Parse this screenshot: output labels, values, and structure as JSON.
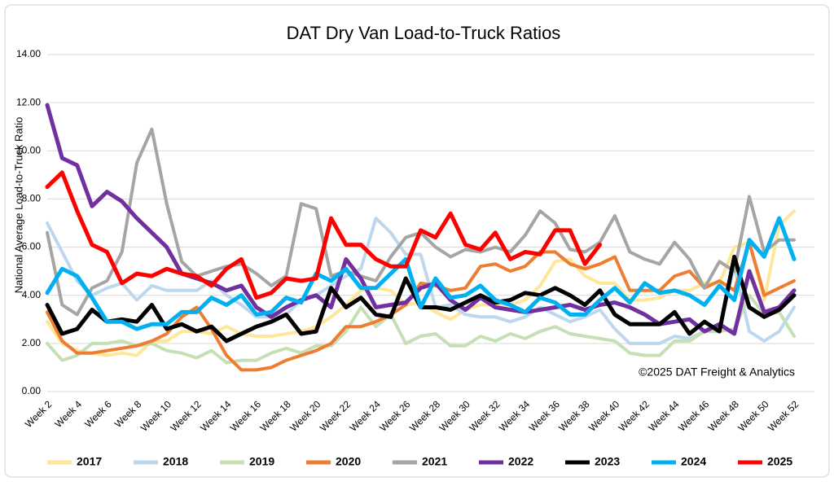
{
  "chart_data": {
    "type": "line",
    "title": "DAT Dry Van Load-to-Truck Ratios",
    "y_label": "National Average Load-to-Truck Ratio",
    "annotation": "©2025 DAT Freight & Analytics",
    "grid": true,
    "legend": "bottom",
    "ylim": [
      0,
      14
    ],
    "yticks": [
      {
        "value": 0,
        "label": "0.00"
      },
      {
        "value": 2,
        "label": "2.00"
      },
      {
        "value": 4,
        "label": "4.00"
      },
      {
        "value": 6,
        "label": "6.00"
      },
      {
        "value": 8,
        "label": "8.00"
      },
      {
        "value": 10,
        "label": "10.00"
      },
      {
        "value": 12,
        "label": "12.00"
      },
      {
        "value": 14,
        "label": "14.00"
      }
    ],
    "categories": [
      "Week 2",
      null,
      "Week 4",
      null,
      "Week 6",
      null,
      "Week 8",
      null,
      "Week 10",
      null,
      "Week 12",
      null,
      "Week 14",
      null,
      "Week 16",
      null,
      "Week 18",
      null,
      "Week 20",
      null,
      "Week 22",
      null,
      "Week 24",
      null,
      "Week 26",
      null,
      "Week 28",
      null,
      "Week 30",
      null,
      "Week 32",
      null,
      "Week 34",
      null,
      "Week 36",
      null,
      "Week 38",
      null,
      "Week 40",
      null,
      "Week 42",
      null,
      "Week 44",
      null,
      "Week 46",
      null,
      "Week 48",
      null,
      "Week 50",
      null,
      "Week 52"
    ],
    "series": [
      {
        "name": "2017",
        "color": "#ffe699",
        "values": [
          2.9,
          2.0,
          1.7,
          1.6,
          1.5,
          1.6,
          1.5,
          2.1,
          2.1,
          2.5,
          2.5,
          2.4,
          2.7,
          2.4,
          2.3,
          2.3,
          2.4,
          2.5,
          2.7,
          3.1,
          3.6,
          4.2,
          4.3,
          4.2,
          3.6,
          3.7,
          3.3,
          3.0,
          3.4,
          3.6,
          3.6,
          3.6,
          3.8,
          4.4,
          5.4,
          5.5,
          4.8,
          4.5,
          4.5,
          3.8,
          3.8,
          3.9,
          4.2,
          4.2,
          4.5,
          4.5,
          6.0,
          6.2,
          3.8,
          6.9,
          7.5
        ]
      },
      {
        "name": "2018",
        "color": "#bdd7ee",
        "values": [
          7.0,
          5.8,
          4.6,
          4.0,
          4.3,
          4.5,
          3.8,
          4.4,
          4.2,
          4.2,
          4.2,
          4.6,
          4.0,
          3.6,
          3.1,
          3.1,
          3.2,
          3.8,
          4.0,
          4.4,
          4.8,
          5.1,
          7.2,
          6.6,
          5.7,
          5.7,
          3.5,
          3.6,
          3.2,
          3.1,
          3.1,
          2.9,
          3.1,
          3.5,
          3.2,
          2.9,
          3.1,
          3.4,
          2.6,
          2.0,
          2.0,
          2.0,
          2.3,
          2.2,
          2.5,
          2.6,
          5.2,
          2.5,
          2.1,
          2.5,
          3.5
        ]
      },
      {
        "name": "2019",
        "color": "#c5e0b4",
        "values": [
          2.0,
          1.3,
          1.5,
          2.0,
          2.0,
          2.1,
          1.9,
          2.0,
          1.7,
          1.6,
          1.4,
          1.7,
          1.2,
          1.3,
          1.3,
          1.6,
          1.8,
          1.6,
          1.9,
          1.9,
          2.5,
          3.5,
          2.7,
          3.2,
          2.0,
          2.3,
          2.4,
          1.9,
          1.9,
          2.3,
          2.1,
          2.4,
          2.2,
          2.5,
          2.7,
          2.4,
          2.3,
          2.2,
          2.1,
          1.6,
          1.5,
          1.5,
          2.1,
          2.1,
          2.5,
          2.5,
          2.6,
          4.0,
          3.2,
          3.3,
          2.3
        ]
      },
      {
        "name": "2020",
        "color": "#ed7d31",
        "values": [
          3.3,
          2.1,
          1.6,
          1.6,
          1.7,
          1.8,
          1.9,
          2.1,
          2.4,
          3.1,
          3.5,
          2.6,
          1.5,
          0.9,
          0.9,
          1.0,
          1.3,
          1.5,
          1.7,
          2.0,
          2.7,
          2.7,
          2.9,
          3.2,
          3.6,
          4.5,
          4.4,
          4.2,
          4.3,
          5.2,
          5.3,
          5.0,
          5.2,
          5.8,
          5.8,
          5.3,
          5.1,
          5.3,
          5.6,
          4.2,
          4.2,
          4.2,
          4.8,
          5.0,
          4.3,
          4.6,
          4.2,
          6.2,
          4.0,
          4.3,
          4.6
        ]
      },
      {
        "name": "2021",
        "color": "#a5a5a5",
        "values": [
          6.6,
          3.6,
          3.2,
          4.3,
          4.6,
          5.8,
          9.5,
          10.9,
          7.8,
          5.4,
          4.8,
          5.0,
          5.2,
          5.3,
          4.9,
          4.4,
          4.8,
          7.8,
          7.6,
          4.8,
          5.0,
          4.8,
          4.6,
          5.6,
          6.4,
          6.6,
          6.0,
          5.6,
          5.9,
          5.8,
          6.0,
          5.8,
          6.5,
          7.5,
          7.0,
          5.9,
          5.8,
          6.2,
          7.3,
          5.8,
          5.5,
          5.3,
          6.2,
          5.5,
          4.3,
          5.4,
          5.0,
          8.1,
          5.8,
          6.3,
          6.3
        ]
      },
      {
        "name": "2022",
        "color": "#7030a0",
        "values": [
          11.9,
          9.7,
          9.4,
          7.7,
          8.3,
          7.9,
          7.2,
          6.6,
          6.0,
          4.9,
          4.7,
          4.5,
          4.2,
          4.4,
          3.5,
          3.1,
          3.5,
          3.8,
          4.0,
          3.5,
          5.5,
          4.7,
          3.5,
          3.6,
          3.7,
          4.3,
          4.5,
          3.8,
          3.4,
          3.9,
          3.5,
          3.4,
          3.3,
          3.4,
          3.5,
          3.6,
          3.4,
          3.6,
          3.7,
          3.5,
          3.2,
          2.8,
          2.9,
          3.0,
          2.5,
          2.8,
          2.4,
          5.0,
          3.3,
          3.5,
          4.2
        ]
      },
      {
        "name": "2023",
        "color": "#000000",
        "values": [
          3.6,
          2.4,
          2.6,
          3.4,
          2.9,
          3.0,
          2.9,
          3.6,
          2.6,
          2.8,
          2.5,
          2.7,
          2.1,
          2.4,
          2.7,
          2.9,
          3.2,
          2.4,
          2.5,
          4.3,
          3.5,
          3.9,
          3.2,
          3.1,
          4.7,
          3.5,
          3.5,
          3.4,
          3.7,
          4.0,
          3.7,
          3.8,
          4.1,
          4.0,
          4.3,
          4.0,
          3.6,
          4.2,
          3.2,
          2.8,
          2.8,
          2.8,
          3.3,
          2.4,
          2.9,
          2.5,
          5.6,
          3.5,
          3.1,
          3.4,
          4.0
        ]
      },
      {
        "name": "2024",
        "color": "#00b0f0",
        "values": [
          4.1,
          5.1,
          4.8,
          3.9,
          2.9,
          2.9,
          2.6,
          2.8,
          2.8,
          3.3,
          3.3,
          3.9,
          3.6,
          4.0,
          3.2,
          3.3,
          3.9,
          3.7,
          4.9,
          4.6,
          5.1,
          4.3,
          4.3,
          4.9,
          5.5,
          3.5,
          4.7,
          3.9,
          4.0,
          4.4,
          3.8,
          3.6,
          3.3,
          3.9,
          3.7,
          3.2,
          3.2,
          3.8,
          4.3,
          3.7,
          4.5,
          4.1,
          4.2,
          4.0,
          3.6,
          4.4,
          3.8,
          6.3,
          5.6,
          7.2,
          5.5
        ]
      },
      {
        "name": "2025",
        "color": "#ff0000",
        "values": [
          8.5,
          9.1,
          7.5,
          6.1,
          5.8,
          4.5,
          4.9,
          4.8,
          5.1,
          4.9,
          4.8,
          4.4,
          5.1,
          5.5,
          3.9,
          4.1,
          4.7,
          4.6,
          4.7,
          7.2,
          6.1,
          6.1,
          5.5,
          5.2,
          5.2,
          6.7,
          6.4,
          7.4,
          6.1,
          5.9,
          6.6,
          5.5,
          5.8,
          5.7,
          6.7,
          6.7,
          5.3,
          6.1,
          null,
          null,
          null,
          null,
          null,
          null,
          null,
          null,
          null,
          null,
          null,
          null,
          null
        ]
      }
    ]
  }
}
